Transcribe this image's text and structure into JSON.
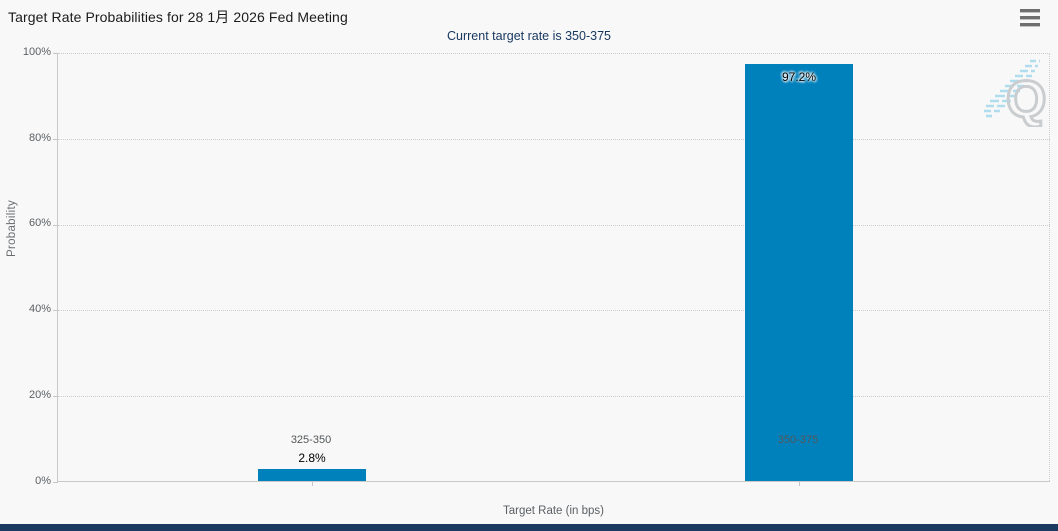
{
  "header": {
    "title": "Target Rate Probabilities for 28 1月 2026 Fed Meeting"
  },
  "subtitle": "Current target rate is 350-375",
  "watermark": {
    "letter": "Q"
  },
  "chart_data": {
    "type": "bar",
    "title": "Target Rate Probabilities for 28 1月 2026 Fed Meeting",
    "subtitle": "Current target rate is 350-375",
    "categories": [
      "325-350",
      "350-375"
    ],
    "values": [
      2.8,
      97.2
    ],
    "bar_labels": [
      "2.8%",
      "97.2%"
    ],
    "xlabel": "Target Rate (in bps)",
    "ylabel": "Probability",
    "ylim": [
      0,
      100
    ],
    "ytick_labels": [
      "0%",
      "20%",
      "40%",
      "60%",
      "80%",
      "100%"
    ],
    "grid": "horizontal-dotted",
    "legend": "none",
    "bar_color": "#0081bc",
    "accent_navy": "#17365e"
  }
}
